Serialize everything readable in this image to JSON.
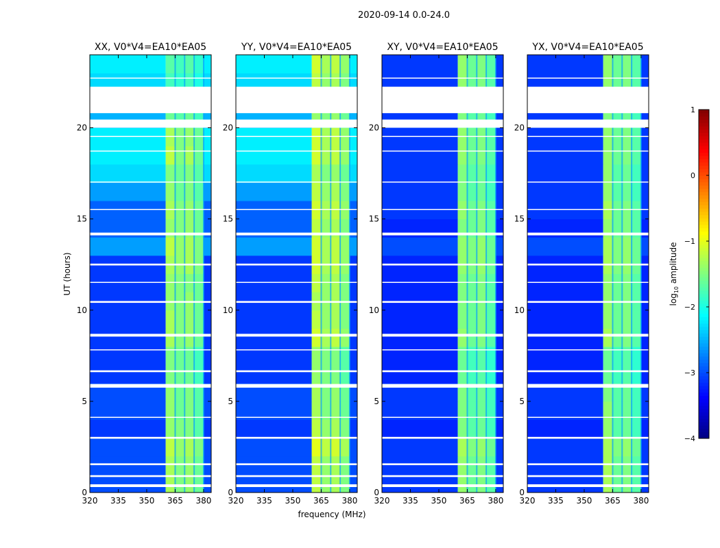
{
  "chart_data": {
    "type": "heatmap",
    "title": "2020-09-14 0.0-24.0",
    "xlabel": "frequency (MHz)",
    "ylabel": "UT (hours)",
    "xlim": [
      320,
      384
    ],
    "ylim": [
      0,
      24
    ],
    "xticks": [
      320,
      335,
      350,
      365,
      380
    ],
    "yticks": [
      0,
      5,
      10,
      15,
      20
    ],
    "colormap": "jet",
    "colorbar": {
      "label": "log10 amplitude",
      "label_main": "log",
      "label_sub": "10",
      "label_rest": " amplitude",
      "range": [
        -4,
        1
      ],
      "ticks": [
        1,
        0,
        -1,
        -2,
        -3,
        -4
      ]
    },
    "freq_bins": [
      [
        320,
        360
      ],
      [
        360,
        365
      ],
      [
        365,
        370
      ],
      [
        370,
        375
      ],
      [
        375,
        380
      ],
      [
        380,
        384
      ]
    ],
    "flagged_hours": [
      [
        0.3,
        0.45
      ],
      [
        0.85,
        0.95
      ],
      [
        1.5,
        1.6
      ],
      [
        2.95,
        3.05
      ],
      [
        4.1,
        4.15
      ],
      [
        5.75,
        5.95
      ],
      [
        6.6,
        6.7
      ],
      [
        7.8,
        7.85
      ],
      [
        8.55,
        8.7
      ],
      [
        10.4,
        10.5
      ],
      [
        11.5,
        11.55
      ],
      [
        12.45,
        12.55
      ],
      [
        14.1,
        14.25
      ],
      [
        15.5,
        15.55
      ],
      [
        17.0,
        17.05
      ],
      [
        18.7,
        18.75
      ],
      [
        19.5,
        19.55
      ],
      [
        20.0,
        20.45
      ],
      [
        20.8,
        22.25
      ],
      [
        22.7,
        22.75
      ]
    ],
    "panels": [
      {
        "title": "XX, V0*V4=EA10*EA05",
        "values": [
          [
            -3.0,
            -1.3,
            -1.5,
            -1.4,
            -1.6,
            -3.0
          ],
          [
            -3.0,
            -1.3,
            -1.5,
            -1.4,
            -1.6,
            -3.0
          ],
          [
            -3.0,
            -1.2,
            -1.4,
            -1.3,
            -1.5,
            -3.0
          ],
          [
            -3.1,
            -1.4,
            -1.5,
            -1.5,
            -1.7,
            -3.1
          ],
          [
            -3.0,
            -1.4,
            -1.6,
            -1.5,
            -1.7,
            -3.0
          ],
          [
            -3.0,
            -1.4,
            -1.6,
            -1.5,
            -1.7,
            -3.0
          ],
          [
            -3.1,
            -1.5,
            -1.6,
            -1.6,
            -1.8,
            -3.1
          ],
          [
            -3.1,
            -1.5,
            -1.6,
            -1.6,
            -1.8,
            -3.1
          ],
          [
            -3.1,
            -1.3,
            -1.5,
            -1.4,
            -1.6,
            -3.1
          ],
          [
            -3.1,
            -1.3,
            -1.5,
            -1.4,
            -1.6,
            -3.1
          ],
          [
            -3.1,
            -1.4,
            -1.5,
            -1.4,
            -1.6,
            -3.1
          ],
          [
            -3.1,
            -1.4,
            -1.5,
            -1.5,
            -1.6,
            -3.1
          ],
          [
            -3.1,
            -1.3,
            -1.4,
            -1.3,
            -1.5,
            -3.1
          ],
          [
            -2.6,
            -1.2,
            -1.4,
            -1.3,
            -1.5,
            -2.6
          ],
          [
            -2.9,
            -1.4,
            -1.5,
            -1.4,
            -1.6,
            -2.9
          ],
          [
            -2.9,
            -1.3,
            -1.5,
            -1.4,
            -1.6,
            -2.9
          ],
          [
            -2.6,
            -1.4,
            -1.6,
            -1.5,
            -1.7,
            -2.6
          ],
          [
            -2.3,
            -1.5,
            -1.6,
            -1.5,
            -1.7,
            -2.3
          ],
          [
            -2.2,
            -1.2,
            -1.5,
            -1.3,
            -1.6,
            -2.2
          ],
          [
            -2.2,
            -1.3,
            -1.5,
            -1.4,
            -1.6,
            -2.2
          ],
          [
            -2.5,
            -1.6,
            -1.7,
            -1.6,
            -1.8,
            -2.5
          ],
          [
            -2.3,
            -1.8,
            -1.9,
            -1.8,
            -2.0,
            -2.3
          ],
          [
            -2.3,
            -1.8,
            -1.9,
            -1.8,
            -2.0,
            -2.3
          ],
          [
            -2.2,
            -1.7,
            -1.8,
            -1.7,
            -1.9,
            -2.2
          ]
        ]
      },
      {
        "title": "YY, V0*V4=EA10*EA05",
        "values": [
          [
            -3.0,
            -1.2,
            -1.4,
            -1.3,
            -1.5,
            -3.0
          ],
          [
            -3.0,
            -1.2,
            -1.4,
            -1.3,
            -1.5,
            -3.0
          ],
          [
            -3.0,
            -1.0,
            -1.2,
            -1.1,
            -1.3,
            -3.0
          ],
          [
            -3.1,
            -1.2,
            -1.4,
            -1.3,
            -1.5,
            -3.1
          ],
          [
            -3.0,
            -1.3,
            -1.5,
            -1.4,
            -1.6,
            -3.0
          ],
          [
            -3.0,
            -1.3,
            -1.5,
            -1.4,
            -1.6,
            -3.0
          ],
          [
            -3.1,
            -1.4,
            -1.5,
            -1.5,
            -1.7,
            -3.1
          ],
          [
            -3.1,
            -1.4,
            -1.5,
            -1.5,
            -1.7,
            -3.1
          ],
          [
            -3.1,
            -1.1,
            -1.3,
            -1.2,
            -1.4,
            -3.1
          ],
          [
            -3.1,
            -1.2,
            -1.4,
            -1.3,
            -1.5,
            -3.1
          ],
          [
            -3.1,
            -1.3,
            -1.4,
            -1.3,
            -1.5,
            -3.1
          ],
          [
            -3.1,
            -1.2,
            -1.4,
            -1.3,
            -1.5,
            -3.1
          ],
          [
            -3.1,
            -1.1,
            -1.3,
            -1.2,
            -1.4,
            -3.1
          ],
          [
            -2.6,
            -1.1,
            -1.3,
            -1.2,
            -1.4,
            -2.6
          ],
          [
            -2.9,
            -1.2,
            -1.4,
            -1.3,
            -1.5,
            -2.9
          ],
          [
            -2.9,
            -1.1,
            -1.3,
            -1.2,
            -1.4,
            -2.9
          ],
          [
            -2.6,
            -1.2,
            -1.4,
            -1.3,
            -1.5,
            -2.6
          ],
          [
            -2.3,
            -1.3,
            -1.5,
            -1.4,
            -1.6,
            -2.3
          ],
          [
            -2.2,
            -1.1,
            -1.3,
            -1.2,
            -1.4,
            -2.2
          ],
          [
            -2.2,
            -1.1,
            -1.3,
            -1.2,
            -1.4,
            -2.2
          ],
          [
            -2.5,
            -1.4,
            -1.5,
            -1.4,
            -1.6,
            -2.5
          ],
          [
            -2.3,
            -1.2,
            -1.4,
            -1.3,
            -1.5,
            -2.3
          ],
          [
            -2.3,
            -1.2,
            -1.4,
            -1.3,
            -1.5,
            -2.3
          ],
          [
            -2.2,
            -1.1,
            -1.3,
            -1.2,
            -1.4,
            -2.2
          ]
        ]
      },
      {
        "title": "XY, V0*V4=EA10*EA05",
        "values": [
          [
            -3.1,
            -1.4,
            -1.6,
            -1.5,
            -1.7,
            -3.1
          ],
          [
            -3.1,
            -1.4,
            -1.6,
            -1.5,
            -1.7,
            -3.1
          ],
          [
            -3.1,
            -1.3,
            -1.5,
            -1.4,
            -1.6,
            -3.1
          ],
          [
            -3.2,
            -1.5,
            -1.7,
            -1.6,
            -1.8,
            -3.2
          ],
          [
            -3.1,
            -1.5,
            -1.7,
            -1.6,
            -1.8,
            -3.1
          ],
          [
            -3.1,
            -1.5,
            -1.7,
            -1.6,
            -1.8,
            -3.1
          ],
          [
            -3.2,
            -1.6,
            -1.8,
            -1.7,
            -1.9,
            -3.2
          ],
          [
            -3.2,
            -1.6,
            -1.8,
            -1.7,
            -1.9,
            -3.2
          ],
          [
            -3.2,
            -1.4,
            -1.6,
            -1.5,
            -1.7,
            -3.2
          ],
          [
            -3.2,
            -1.5,
            -1.6,
            -1.5,
            -1.7,
            -3.2
          ],
          [
            -3.2,
            -1.5,
            -1.6,
            -1.5,
            -1.7,
            -3.2
          ],
          [
            -3.2,
            -1.5,
            -1.6,
            -1.5,
            -1.7,
            -3.2
          ],
          [
            -3.2,
            -1.4,
            -1.5,
            -1.4,
            -1.6,
            -3.2
          ],
          [
            -3.0,
            -1.4,
            -1.5,
            -1.4,
            -1.6,
            -3.0
          ],
          [
            -3.2,
            -1.5,
            -1.6,
            -1.5,
            -1.7,
            -3.2
          ],
          [
            -3.1,
            -1.4,
            -1.6,
            -1.5,
            -1.7,
            -3.1
          ],
          [
            -3.1,
            -1.5,
            -1.7,
            -1.6,
            -1.8,
            -3.1
          ],
          [
            -3.1,
            -1.5,
            -1.7,
            -1.6,
            -1.8,
            -3.1
          ],
          [
            -3.1,
            -1.4,
            -1.6,
            -1.5,
            -1.7,
            -3.1
          ],
          [
            -3.1,
            -1.4,
            -1.6,
            -1.5,
            -1.7,
            -3.1
          ],
          [
            -3.1,
            -1.5,
            -1.7,
            -1.6,
            -1.8,
            -3.1
          ],
          [
            -3.1,
            -1.5,
            -1.7,
            -1.6,
            -1.8,
            -3.1
          ],
          [
            -3.1,
            -1.4,
            -1.6,
            -1.5,
            -1.7,
            -3.1
          ],
          [
            -3.1,
            -1.4,
            -1.6,
            -1.5,
            -1.7,
            -3.1
          ]
        ]
      },
      {
        "title": "YX, V0*V4=EA10*EA05",
        "values": [
          [
            -3.1,
            -1.3,
            -1.6,
            -1.5,
            -1.7,
            -3.1
          ],
          [
            -3.1,
            -1.3,
            -1.6,
            -1.5,
            -1.7,
            -3.1
          ],
          [
            -3.1,
            -1.3,
            -1.5,
            -1.4,
            -1.6,
            -3.1
          ],
          [
            -3.2,
            -1.4,
            -1.7,
            -1.6,
            -1.8,
            -3.2
          ],
          [
            -3.1,
            -1.4,
            -1.7,
            -1.6,
            -1.8,
            -3.1
          ],
          [
            -3.1,
            -1.5,
            -1.7,
            -1.6,
            -1.8,
            -3.1
          ],
          [
            -3.2,
            -1.6,
            -1.8,
            -1.7,
            -1.9,
            -3.2
          ],
          [
            -3.2,
            -1.6,
            -1.8,
            -1.7,
            -1.9,
            -3.2
          ],
          [
            -3.2,
            -1.3,
            -1.6,
            -1.5,
            -1.7,
            -3.2
          ],
          [
            -3.2,
            -1.4,
            -1.6,
            -1.5,
            -1.7,
            -3.2
          ],
          [
            -3.2,
            -1.4,
            -1.6,
            -1.5,
            -1.7,
            -3.2
          ],
          [
            -3.2,
            -1.4,
            -1.6,
            -1.5,
            -1.7,
            -3.2
          ],
          [
            -3.2,
            -1.3,
            -1.5,
            -1.4,
            -1.6,
            -3.2
          ],
          [
            -3.0,
            -1.3,
            -1.5,
            -1.4,
            -1.6,
            -3.0
          ],
          [
            -3.2,
            -1.4,
            -1.6,
            -1.5,
            -1.7,
            -3.2
          ],
          [
            -3.1,
            -1.3,
            -1.6,
            -1.5,
            -1.7,
            -3.1
          ],
          [
            -3.1,
            -1.4,
            -1.7,
            -1.6,
            -1.8,
            -3.1
          ],
          [
            -3.1,
            -1.4,
            -1.7,
            -1.6,
            -1.8,
            -3.1
          ],
          [
            -3.1,
            -1.4,
            -1.6,
            -1.5,
            -1.7,
            -3.1
          ],
          [
            -3.1,
            -1.4,
            -1.6,
            -1.5,
            -1.7,
            -3.1
          ],
          [
            -3.1,
            -1.5,
            -1.7,
            -1.6,
            -1.8,
            -3.1
          ],
          [
            -3.1,
            -1.5,
            -1.7,
            -1.6,
            -1.8,
            -3.1
          ],
          [
            -3.1,
            -1.4,
            -1.6,
            -1.5,
            -1.7,
            -3.1
          ],
          [
            -3.1,
            -1.4,
            -1.6,
            -1.5,
            -1.7,
            -3.1
          ]
        ]
      }
    ]
  }
}
